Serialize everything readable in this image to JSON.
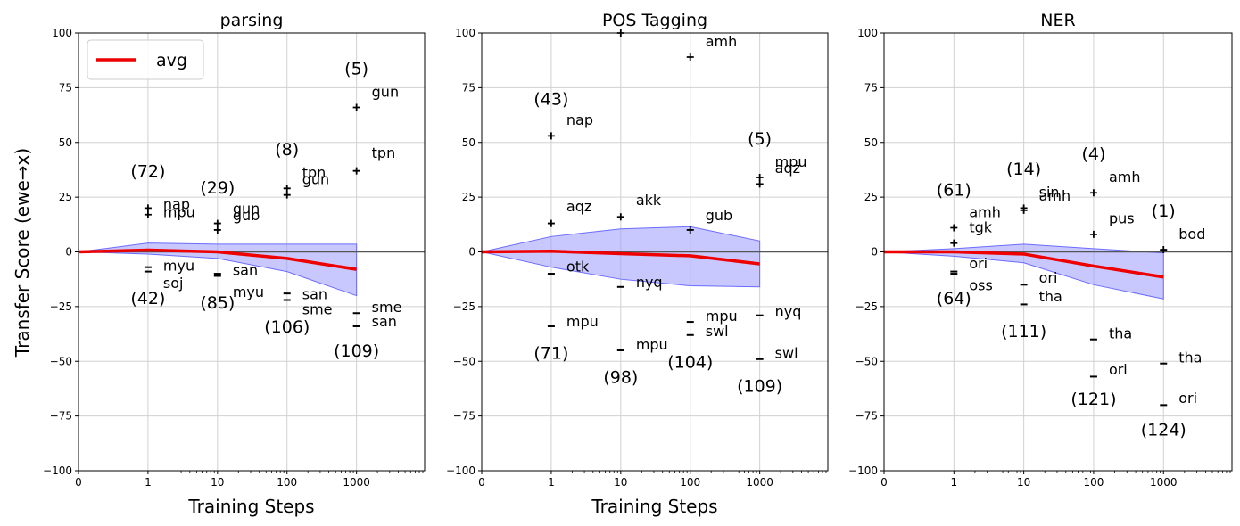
{
  "figure": {
    "ylabel": "Transfer Score (ewe→x)",
    "xlabel": "Training Steps",
    "legend_label": "avg",
    "colors": {
      "avg": "#ee0000",
      "band_fill": "#9a9aff",
      "band_edge": "#6b6bff",
      "grid": "#d0d0d0",
      "zero_line": "#555555"
    }
  },
  "chart_data": [
    {
      "type": "line",
      "title": "parsing",
      "xlabel": "Training Steps",
      "ylabel": "Transfer Score (ewe→x)",
      "xscale": "symlog",
      "x_ticks": [
        "0",
        "1",
        "10",
        "100",
        "1000"
      ],
      "ylim": [
        -100,
        100
      ],
      "y_ticks": [
        "100",
        "75",
        "50",
        "25",
        "0",
        "−25",
        "−50",
        "−75",
        "−100"
      ],
      "grid": true,
      "legend": "top-left",
      "avg": {
        "name": "avg",
        "x": [
          0,
          1,
          10,
          100,
          1000
        ],
        "y": [
          0,
          0.8,
          0,
          -3,
          -8
        ]
      },
      "band": {
        "x": [
          0,
          1,
          10,
          100,
          1000
        ],
        "upper": [
          0,
          4,
          3.5,
          3.5,
          3.5
        ],
        "lower": [
          0,
          -1,
          -3,
          -9,
          -20
        ]
      },
      "points": [
        {
          "x": 1,
          "y": 20,
          "marker": "+",
          "label": "nap"
        },
        {
          "x": 1,
          "y": 17,
          "marker": "+",
          "label": "mpu"
        },
        {
          "x": 1,
          "y": -7,
          "marker": "_",
          "label": "myu"
        },
        {
          "x": 1,
          "y": -9,
          "marker": "_",
          "label": "soj"
        },
        {
          "x": 10,
          "y": 13,
          "marker": "+",
          "label": "gun"
        },
        {
          "x": 10,
          "y": 10,
          "marker": "+",
          "label": "gub"
        },
        {
          "x": 10,
          "y": -10,
          "marker": "_",
          "label": "san"
        },
        {
          "x": 10,
          "y": -11,
          "marker": "_",
          "label": "myu"
        },
        {
          "x": 100,
          "y": 29,
          "marker": "+",
          "label": "tpn"
        },
        {
          "x": 100,
          "y": 26,
          "marker": "+",
          "label": "gun"
        },
        {
          "x": 100,
          "y": -19,
          "marker": "_",
          "label": "san"
        },
        {
          "x": 100,
          "y": -22,
          "marker": "_",
          "label": "sme"
        },
        {
          "x": 1000,
          "y": 66,
          "marker": "+",
          "label": "gun"
        },
        {
          "x": 1000,
          "y": 37,
          "marker": "+",
          "label": "tpn"
        },
        {
          "x": 1000,
          "y": -28,
          "marker": "_",
          "label": "sme"
        },
        {
          "x": 1000,
          "y": -34,
          "marker": "_",
          "label": "san"
        }
      ],
      "text_labels": [
        {
          "x": 1,
          "text": "nap",
          "y": 21.5
        },
        {
          "x": 1,
          "text": "mpu",
          "y": 18
        },
        {
          "x": 1,
          "text": "myu",
          "y": -6.5
        },
        {
          "x": 1,
          "text": "soj",
          "y": -14.5
        },
        {
          "x": 10,
          "text": "gun",
          "y": 19.5
        },
        {
          "x": 10,
          "text": "gub",
          "y": 16.5
        },
        {
          "x": 10,
          "text": "san",
          "y": -8.5
        },
        {
          "x": 10,
          "text": "myu",
          "y": -18.5
        },
        {
          "x": 100,
          "text": "tpn",
          "y": 36
        },
        {
          "x": 100,
          "text": "gun",
          "y": 33
        },
        {
          "x": 100,
          "text": "san",
          "y": -19.5
        },
        {
          "x": 100,
          "text": "sme",
          "y": -26.5
        },
        {
          "x": 1000,
          "text": "gun",
          "y": 73
        },
        {
          "x": 1000,
          "text": "tpn",
          "y": 45
        },
        {
          "x": 1000,
          "text": "sme",
          "y": -25.5
        },
        {
          "x": 1000,
          "text": "san",
          "y": -32
        }
      ],
      "count_labels": [
        {
          "x": 1,
          "text": "(72)",
          "y": 37
        },
        {
          "x": 1,
          "text": "(42)",
          "y": -21
        },
        {
          "x": 10,
          "text": "(29)",
          "y": 29.5
        },
        {
          "x": 10,
          "text": "(85)",
          "y": -23
        },
        {
          "x": 100,
          "text": "(8)",
          "y": 47
        },
        {
          "x": 100,
          "text": "(106)",
          "y": -34
        },
        {
          "x": 1000,
          "text": "(5)",
          "y": 84
        },
        {
          "x": 1000,
          "text": "(109)",
          "y": -45
        }
      ]
    },
    {
      "type": "line",
      "title": "POS Tagging",
      "xlabel": "Training Steps",
      "ylabel": "",
      "xscale": "symlog",
      "x_ticks": [
        "0",
        "1",
        "10",
        "100",
        "1000"
      ],
      "ylim": [
        -100,
        100
      ],
      "y_ticks": [
        "100",
        "75",
        "50",
        "25",
        "0",
        "−25",
        "−50",
        "−75",
        "−100"
      ],
      "grid": true,
      "avg": {
        "name": "avg",
        "x": [
          0,
          1,
          10,
          100,
          1000
        ],
        "y": [
          0,
          0.3,
          -0.8,
          -1.8,
          -5.5
        ]
      },
      "band": {
        "x": [
          0,
          1,
          10,
          100,
          1000
        ],
        "upper": [
          0,
          7,
          10.5,
          11.5,
          5
        ],
        "lower": [
          0,
          -7,
          -12.5,
          -15.5,
          -16
        ]
      },
      "points": [
        {
          "x": 1,
          "y": 53,
          "marker": "+",
          "label": "nap"
        },
        {
          "x": 1,
          "y": 13,
          "marker": "+",
          "label": "aqz"
        },
        {
          "x": 1,
          "y": -10,
          "marker": "_",
          "label": "otk"
        },
        {
          "x": 1,
          "y": -34,
          "marker": "_",
          "label": "mpu"
        },
        {
          "x": 10,
          "y": 100,
          "marker": "+",
          "label": ""
        },
        {
          "x": 10,
          "y": 16,
          "marker": "+",
          "label": "akk"
        },
        {
          "x": 10,
          "y": -16,
          "marker": "_",
          "label": "nyq"
        },
        {
          "x": 10,
          "y": -45,
          "marker": "_",
          "label": "mpu"
        },
        {
          "x": 100,
          "y": 89,
          "marker": "+",
          "label": "amh"
        },
        {
          "x": 100,
          "y": 10,
          "marker": "+",
          "label": "gub"
        },
        {
          "x": 100,
          "y": -32,
          "marker": "_",
          "label": "mpu"
        },
        {
          "x": 100,
          "y": -38,
          "marker": "_",
          "label": "swl"
        },
        {
          "x": 1000,
          "y": 34,
          "marker": "+",
          "label": "mpu"
        },
        {
          "x": 1000,
          "y": 31,
          "marker": "+",
          "label": "aqz"
        },
        {
          "x": 1000,
          "y": -29,
          "marker": "_",
          "label": "nyq"
        },
        {
          "x": 1000,
          "y": -49,
          "marker": "_",
          "label": "swl"
        }
      ],
      "text_labels": [
        {
          "x": 1,
          "text": "nap",
          "y": 60
        },
        {
          "x": 1,
          "text": "aqz",
          "y": 20.5
        },
        {
          "x": 1,
          "text": "otk",
          "y": -7
        },
        {
          "x": 1,
          "text": "mpu",
          "y": -32
        },
        {
          "x": 10,
          "text": "akk",
          "y": 23.5
        },
        {
          "x": 10,
          "text": "nyq",
          "y": -14
        },
        {
          "x": 10,
          "text": "mpu",
          "y": -42.5
        },
        {
          "x": 100,
          "text": "amh",
          "y": 96
        },
        {
          "x": 100,
          "text": "gub",
          "y": 16.5
        },
        {
          "x": 100,
          "text": "mpu",
          "y": -29.5
        },
        {
          "x": 100,
          "text": "swl",
          "y": -36.5
        },
        {
          "x": 1000,
          "text": "mpu",
          "y": 41
        },
        {
          "x": 1000,
          "text": "aqz",
          "y": 38
        },
        {
          "x": 1000,
          "text": "nyq",
          "y": -27.5
        },
        {
          "x": 1000,
          "text": "swl",
          "y": -46.5
        }
      ],
      "count_labels": [
        {
          "x": 1,
          "text": "(43)",
          "y": 70
        },
        {
          "x": 1,
          "text": "(71)",
          "y": -46
        },
        {
          "x": 10,
          "text": "(98)",
          "y": -57
        },
        {
          "x": 100,
          "text": "(104)",
          "y": -50
        },
        {
          "x": 1000,
          "text": "(5)",
          "y": 52
        },
        {
          "x": 1000,
          "text": "(109)",
          "y": -61
        }
      ]
    },
    {
      "type": "line",
      "title": "NER",
      "xlabel": "",
      "ylabel": "",
      "xscale": "symlog",
      "x_ticks": [
        "0",
        "1",
        "10",
        "100",
        "1000"
      ],
      "ylim": [
        -100,
        100
      ],
      "y_ticks": [
        "100",
        "75",
        "50",
        "25",
        "0",
        "−25",
        "−50",
        "−75",
        "−100"
      ],
      "grid": true,
      "avg": {
        "name": "avg",
        "x": [
          0,
          1,
          10,
          100,
          1000
        ],
        "y": [
          0,
          0,
          -1,
          -6.5,
          -11.5
        ]
      },
      "band": {
        "x": [
          0,
          1,
          10,
          100,
          1000
        ],
        "upper": [
          0,
          1.5,
          3.5,
          1.5,
          -0.5
        ],
        "lower": [
          0,
          -2,
          -5,
          -15,
          -21.5
        ]
      },
      "points": [
        {
          "x": 1,
          "y": 11,
          "marker": "+",
          "label": "amh"
        },
        {
          "x": 1,
          "y": 4,
          "marker": "+",
          "label": "tgk"
        },
        {
          "x": 1,
          "y": -9,
          "marker": "_",
          "label": "ori"
        },
        {
          "x": 1,
          "y": -10,
          "marker": "_",
          "label": "oss"
        },
        {
          "x": 10,
          "y": 20,
          "marker": "+",
          "label": "sin"
        },
        {
          "x": 10,
          "y": 19,
          "marker": "+",
          "label": "amh"
        },
        {
          "x": 10,
          "y": -15,
          "marker": "_",
          "label": "ori"
        },
        {
          "x": 10,
          "y": -24,
          "marker": "_",
          "label": "tha"
        },
        {
          "x": 100,
          "y": 27,
          "marker": "+",
          "label": "amh"
        },
        {
          "x": 100,
          "y": 8,
          "marker": "+",
          "label": "pus"
        },
        {
          "x": 100,
          "y": -40,
          "marker": "_",
          "label": "tha"
        },
        {
          "x": 100,
          "y": -57,
          "marker": "_",
          "label": "ori"
        },
        {
          "x": 1000,
          "y": 1,
          "marker": "+",
          "label": "bod"
        },
        {
          "x": 1000,
          "y": -51,
          "marker": "_",
          "label": "tha"
        },
        {
          "x": 1000,
          "y": -70,
          "marker": "_",
          "label": "ori"
        }
      ],
      "text_labels": [
        {
          "x": 1,
          "text": "amh",
          "y": 18
        },
        {
          "x": 1,
          "text": "tgk",
          "y": 11
        },
        {
          "x": 1,
          "text": "ori",
          "y": -5.5
        },
        {
          "x": 1,
          "text": "oss",
          "y": -15.5
        },
        {
          "x": 10,
          "text": "sin",
          "y": 27
        },
        {
          "x": 10,
          "text": "amh",
          "y": 25.5
        },
        {
          "x": 10,
          "text": "ori",
          "y": -12
        },
        {
          "x": 10,
          "text": "tha",
          "y": -20.5
        },
        {
          "x": 100,
          "text": "amh",
          "y": 34
        },
        {
          "x": 100,
          "text": "pus",
          "y": 15
        },
        {
          "x": 100,
          "text": "tha",
          "y": -37.5
        },
        {
          "x": 100,
          "text": "ori",
          "y": -54
        },
        {
          "x": 1000,
          "text": "bod",
          "y": 8
        },
        {
          "x": 1000,
          "text": "tha",
          "y": -48.5
        },
        {
          "x": 1000,
          "text": "ori",
          "y": -67
        }
      ],
      "count_labels": [
        {
          "x": 1,
          "text": "(61)",
          "y": 28.5
        },
        {
          "x": 1,
          "text": "(64)",
          "y": -21
        },
        {
          "x": 10,
          "text": "(14)",
          "y": 38
        },
        {
          "x": 10,
          "text": "(111)",
          "y": -36
        },
        {
          "x": 100,
          "text": "(4)",
          "y": 45
        },
        {
          "x": 100,
          "text": "(121)",
          "y": -67
        },
        {
          "x": 1000,
          "text": "(1)",
          "y": 19
        },
        {
          "x": 1000,
          "text": "(124)",
          "y": -81
        }
      ]
    }
  ]
}
